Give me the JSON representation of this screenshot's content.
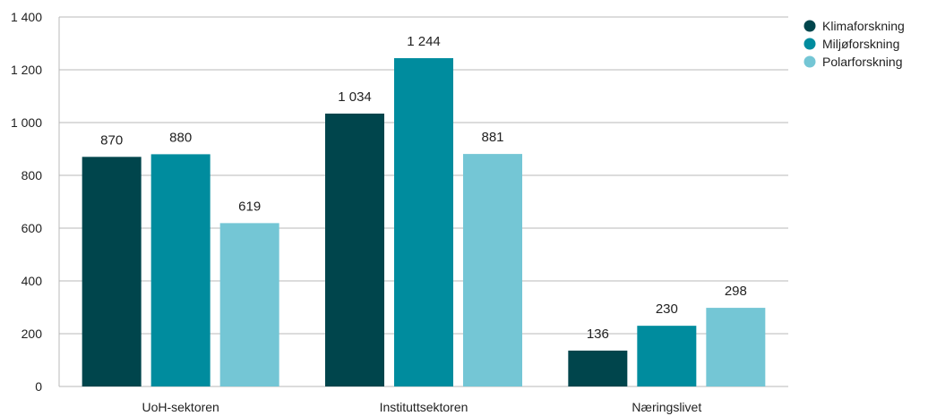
{
  "chart_data": {
    "type": "bar",
    "title": "",
    "xlabel": "",
    "ylabel": "",
    "ylim": [
      0,
      1400
    ],
    "yticks": [
      0,
      200,
      400,
      600,
      800,
      1000,
      1200,
      1400
    ],
    "ytick_labels": [
      "0",
      "200",
      "400",
      "600",
      "800",
      "1 000",
      "1 200",
      "1 400"
    ],
    "grid": "horizontal",
    "legend_position": "top-right",
    "categories": [
      "UoH-sektoren",
      "Instituttsektoren",
      "Næringslivet"
    ],
    "series": [
      {
        "name": "Klimaforskning",
        "color": "#00454c",
        "values": [
          870,
          1034,
          136
        ],
        "labels": [
          "870",
          "1 034",
          "136"
        ]
      },
      {
        "name": "Miljøforskning",
        "color": "#008c9e",
        "values": [
          880,
          1244,
          230
        ],
        "labels": [
          "880",
          "1 244",
          "230"
        ]
      },
      {
        "name": "Polarforskning",
        "color": "#74c6d5",
        "values": [
          619,
          881,
          298
        ],
        "labels": [
          "619",
          "881",
          "298"
        ]
      }
    ]
  }
}
